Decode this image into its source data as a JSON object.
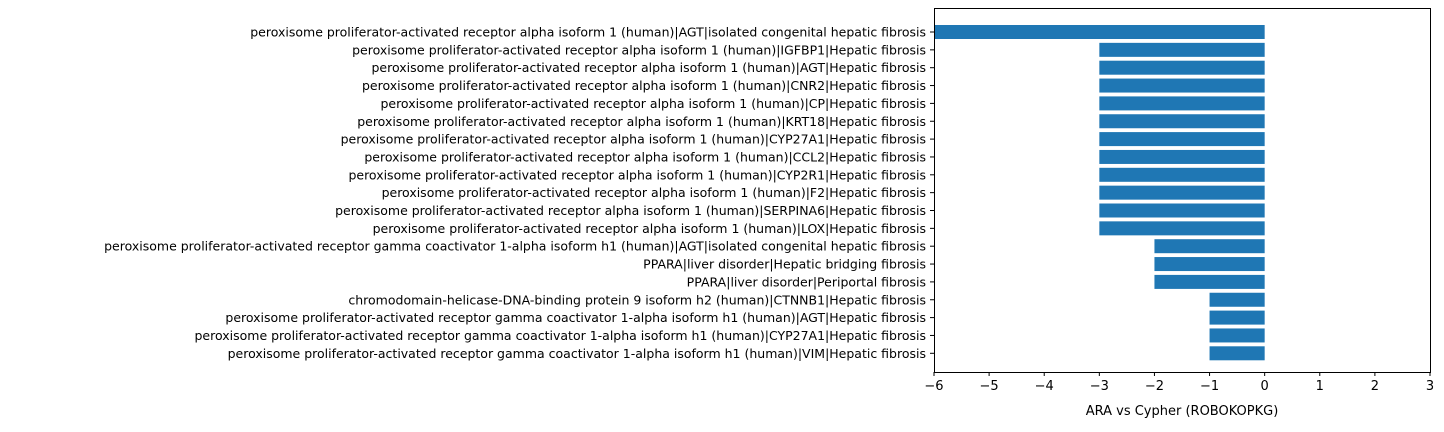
{
  "chart_data": {
    "type": "bar",
    "orientation": "horizontal",
    "categories": [
      "peroxisome proliferator-activated receptor alpha isoform 1 (human)|AGT|isolated congenital hepatic fibrosis",
      "peroxisome proliferator-activated receptor alpha isoform 1 (human)|IGFBP1|Hepatic fibrosis",
      "peroxisome proliferator-activated receptor alpha isoform 1 (human)|AGT|Hepatic fibrosis",
      "peroxisome proliferator-activated receptor alpha isoform 1 (human)|CNR2|Hepatic fibrosis",
      "peroxisome proliferator-activated receptor alpha isoform 1 (human)|CP|Hepatic fibrosis",
      "peroxisome proliferator-activated receptor alpha isoform 1 (human)|KRT18|Hepatic fibrosis",
      "peroxisome proliferator-activated receptor alpha isoform 1 (human)|CYP27A1|Hepatic fibrosis",
      "peroxisome proliferator-activated receptor alpha isoform 1 (human)|CCL2|Hepatic fibrosis",
      "peroxisome proliferator-activated receptor alpha isoform 1 (human)|CYP2R1|Hepatic fibrosis",
      "peroxisome proliferator-activated receptor alpha isoform 1 (human)|F2|Hepatic fibrosis",
      "peroxisome proliferator-activated receptor alpha isoform 1 (human)|SERPINA6|Hepatic fibrosis",
      "peroxisome proliferator-activated receptor alpha isoform 1 (human)|LOX|Hepatic fibrosis",
      "peroxisome proliferator-activated receptor gamma coactivator 1-alpha isoform h1 (human)|AGT|isolated congenital hepatic fibrosis",
      "PPARA|liver disorder|Hepatic bridging fibrosis",
      "PPARA|liver disorder|Periportal fibrosis",
      "chromodomain-helicase-DNA-binding protein 9 isoform h2 (human)|CTNNB1|Hepatic fibrosis",
      "peroxisome proliferator-activated receptor gamma coactivator 1-alpha isoform h1 (human)|AGT|Hepatic fibrosis",
      "peroxisome proliferator-activated receptor gamma coactivator 1-alpha isoform h1 (human)|CYP27A1|Hepatic fibrosis",
      "peroxisome proliferator-activated receptor gamma coactivator 1-alpha isoform h1 (human)|VIM|Hepatic fibrosis"
    ],
    "values": [
      -6,
      -3,
      -3,
      -3,
      -3,
      -3,
      -3,
      -3,
      -3,
      -3,
      -3,
      -3,
      -2,
      -2,
      -2,
      -1,
      -1,
      -1,
      -1
    ],
    "xlabel": "ARA vs Cypher (ROBOKOPKG)",
    "ylabel": "",
    "title": "",
    "xlim": [
      -6,
      3
    ],
    "xticks": [
      -6,
      -5,
      -4,
      -3,
      -2,
      -1,
      0,
      1,
      2,
      3
    ],
    "xtick_labels": [
      "−6",
      "−5",
      "−4",
      "−3",
      "−2",
      "−1",
      "0",
      "1",
      "2",
      "3"
    ],
    "grid": false,
    "colors": {
      "bar": "#1f77b4",
      "axis": "#000000"
    }
  }
}
